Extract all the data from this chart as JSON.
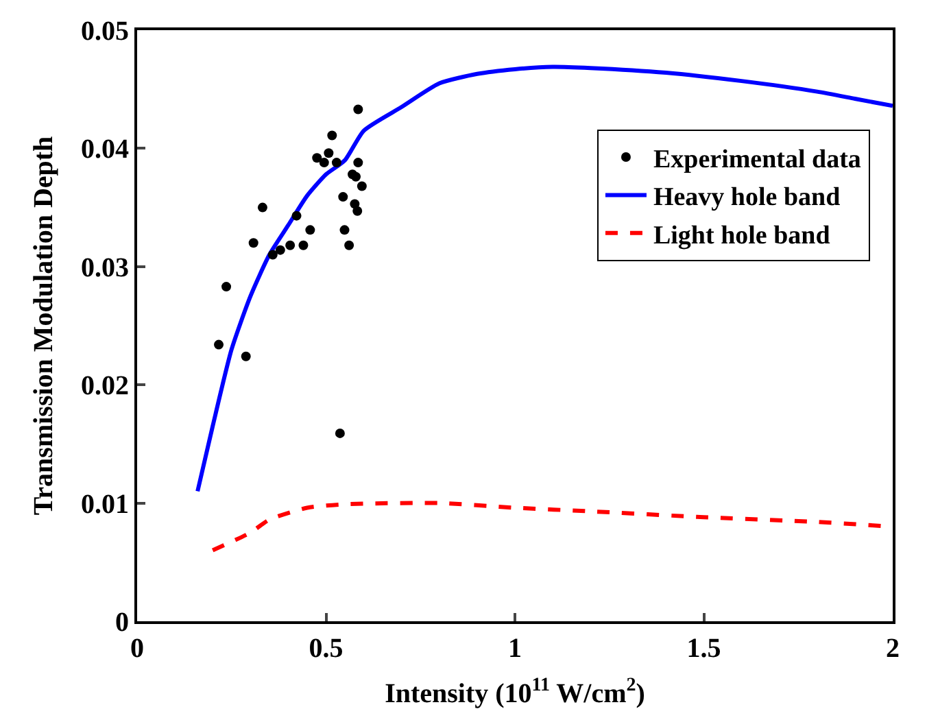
{
  "chart_data": {
    "type": "scatter",
    "xlabel": "Intensity (10$^{11}$ W/cm$^{2}$)",
    "ylabel": "Transmission Modulation Depth",
    "xlim": [
      0,
      2
    ],
    "xticks": [
      0,
      0.5,
      1,
      1.5,
      2
    ],
    "ylim": [
      0,
      0.05
    ],
    "yticks": [
      0,
      0.01,
      0.02,
      0.03,
      0.04,
      0.05
    ],
    "legend": "right",
    "series": [
      {
        "name": "Experimental data",
        "marker": "circle",
        "color": "#000000",
        "x": [
          0.585,
          0.516,
          0.507,
          0.476,
          0.495,
          0.528,
          0.585,
          0.57,
          0.579,
          0.595,
          0.545,
          0.576,
          0.583,
          0.332,
          0.422,
          0.458,
          0.549,
          0.308,
          0.405,
          0.44,
          0.561,
          0.359,
          0.379,
          0.236,
          0.216,
          0.288,
          0.537
        ],
        "values": [
          0.0433,
          0.0411,
          0.0396,
          0.0392,
          0.0388,
          0.0388,
          0.0388,
          0.0378,
          0.0376,
          0.0368,
          0.0359,
          0.0353,
          0.0347,
          0.035,
          0.0343,
          0.0331,
          0.0331,
          0.032,
          0.0318,
          0.0318,
          0.0318,
          0.031,
          0.0314,
          0.0283,
          0.0234,
          0.0224,
          0.0159
        ]
      },
      {
        "name": "Heavy hole band",
        "type": "line",
        "line_style": "solid",
        "color": "#0000ff",
        "x": [
          0.16,
          0.2,
          0.25,
          0.3,
          0.35,
          0.4,
          0.45,
          0.5,
          0.55,
          0.6,
          0.7,
          0.8,
          0.9,
          1.0,
          1.1,
          1.2,
          1.4,
          1.6,
          1.8,
          1.9,
          2.0
        ],
        "values": [
          0.011,
          0.0165,
          0.023,
          0.0275,
          0.031,
          0.0335,
          0.036,
          0.0378,
          0.039,
          0.0415,
          0.0435,
          0.0455,
          0.0463,
          0.0467,
          0.0469,
          0.0468,
          0.0464,
          0.0457,
          0.0448,
          0.0442,
          0.0436
        ]
      },
      {
        "name": "Light hole band",
        "type": "line",
        "line_style": "dashed",
        "color": "#ff0000",
        "x": [
          0.2,
          0.3,
          0.35,
          0.45,
          0.55,
          0.8,
          1.0,
          1.2,
          1.5,
          1.8,
          2.0
        ],
        "values": [
          0.006,
          0.0075,
          0.0086,
          0.0096,
          0.0099,
          0.01,
          0.0096,
          0.0093,
          0.0088,
          0.0084,
          0.008
        ]
      }
    ]
  }
}
